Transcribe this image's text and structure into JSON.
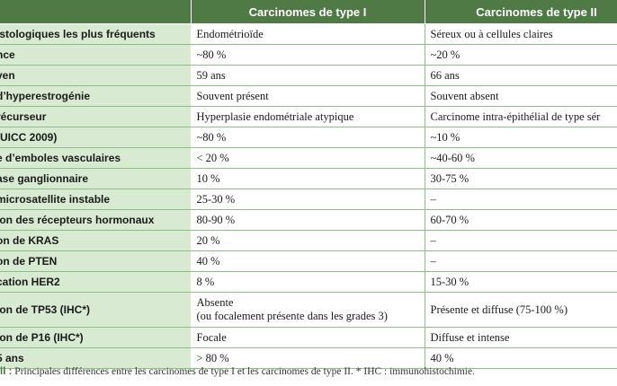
{
  "header": {
    "col1": "Carcinomes de type I",
    "col2": "Carcinomes de type II"
  },
  "rows": [
    {
      "label": "istologiques les plus fréquents",
      "type1": "Endométrioïde",
      "type2": "Séreux ou à cellules claires"
    },
    {
      "label": "nce",
      "type1": "~80 %",
      "type2": "~20 %"
    },
    {
      "label": "yen",
      "type1": "59 ans",
      "type2": "66 ans"
    },
    {
      "label": "d’hyperestrogénie",
      "type1": "Souvent présent",
      "type2": "Souvent absent"
    },
    {
      "label": "récurseur",
      "type1": "Hyperplasie endométriale atypique",
      "type2": "Carcinome intra-épithélial de type sér"
    },
    {
      "label": "(UICC 2009)",
      "type1": "~80 %",
      "type2": "~10 %"
    },
    {
      "label": "e d’emboles vasculaires",
      "type1": "< 20 %",
      "type2": "~40-60 %"
    },
    {
      "label": "ase ganglionnaire",
      "type1": "10 %",
      "type2": "30-75 %"
    },
    {
      "label": "microsatellite instable",
      "type1": "25-30 %",
      "type2": "–"
    },
    {
      "label": "ion des récepteurs hormonaux",
      "type1": "80-90 %",
      "type2": "60-70 %"
    },
    {
      "label": "on de KRAS",
      "type1": "20 %",
      "type2": "–"
    },
    {
      "label": "on de PTEN",
      "type1": "40 %",
      "type2": "–"
    },
    {
      "label": "cation HER2",
      "type1": "8 %",
      "type2": "15-30 %"
    },
    {
      "label": "ion de TP53 (IHC*)",
      "type1": "Absente",
      "type1_line2": "(ou focalement présente dans les grades 3)",
      "type2": "Présente et diffuse (75-100 %)"
    },
    {
      "label": "ion de P16 (IHC*)",
      "type1": "Focale",
      "type2": "Diffuse et intense"
    },
    {
      "label": "5 ans",
      "type1": "> 80 %",
      "type2": "40 %"
    }
  ],
  "caption": {
    "label": "II :",
    "text": " Principales différences entre les carcinomes de type I et les carcinomes de type II. * IHC : immunohistochimie."
  },
  "colors": {
    "header_bg": "#4f7a45",
    "label_bg": "#d9ead3",
    "rule": "#8fbe86"
  }
}
